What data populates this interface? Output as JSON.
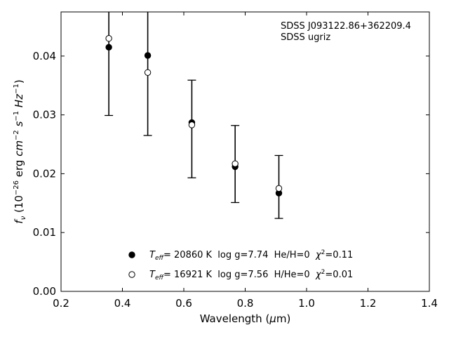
{
  "chart_data": {
    "type": "scatter",
    "xlabel": "Wavelength (μm)",
    "ylabel": "f_ν (10^-26 erg cm^-2 s^-1 Hz^-1)",
    "xlim": [
      0.2,
      1.4
    ],
    "ylim": [
      0.0,
      0.0475
    ],
    "xticks": [
      0.2,
      0.4,
      0.6,
      0.8,
      1.0,
      1.2,
      1.4
    ],
    "xtick_labels": [
      "0.2",
      "0.4",
      "0.6",
      "0.8",
      "1.0",
      "1.2",
      "1.4"
    ],
    "yticks": [
      0.0,
      0.01,
      0.02,
      0.03,
      0.04
    ],
    "ytick_labels": [
      "0.00",
      "0.01",
      "0.02",
      "0.03",
      "0.04"
    ],
    "grid": false,
    "legend_placement": "bottom-center",
    "annotation": {
      "line1": "SDSS J093122.86+362209.4",
      "line2": "SDSS ugriz",
      "placement": "top-right"
    },
    "observed": {
      "x": [
        0.3557,
        0.4825,
        0.6261,
        0.7672,
        0.9097
      ],
      "y": [
        0.0415,
        0.0401,
        0.0287,
        0.0212,
        0.0167
      ],
      "yerr_low": [
        0.0299,
        0.0265,
        0.0193,
        0.0151,
        0.0124
      ],
      "yerr_high": [
        0.0475,
        0.0475,
        0.0359,
        0.0282,
        0.0231
      ]
    },
    "series": [
      {
        "name": "T_eff= 20860 K  log g=7.74  He/H=0  χ²=0.11",
        "legend_parts": {
          "t": "T",
          "sub": "eff",
          "rest": "= 20860 K  log g=7.74  He/H=0  ",
          "chi": "χ",
          "sup": "2",
          "tail": "=0.11"
        },
        "marker": "filled-circle",
        "color": "#000000",
        "x": [
          0.3557,
          0.4825,
          0.6261,
          0.7672,
          0.9097
        ],
        "y": [
          0.0415,
          0.0401,
          0.0287,
          0.0212,
          0.0167
        ]
      },
      {
        "name": "T_eff= 16921 K  log g=7.56  H/He=0  χ²=0.01",
        "legend_parts": {
          "t": "T",
          "sub": "eff",
          "rest": "= 16921 K  log g=7.56  H/He=0  ",
          "chi": "χ",
          "sup": "2",
          "tail": "=0.01"
        },
        "marker": "open-circle",
        "color": "#000000",
        "x": [
          0.3557,
          0.4825,
          0.6261,
          0.7672,
          0.9097
        ],
        "y": [
          0.043,
          0.0372,
          0.0283,
          0.0217,
          0.0175
        ]
      }
    ]
  }
}
